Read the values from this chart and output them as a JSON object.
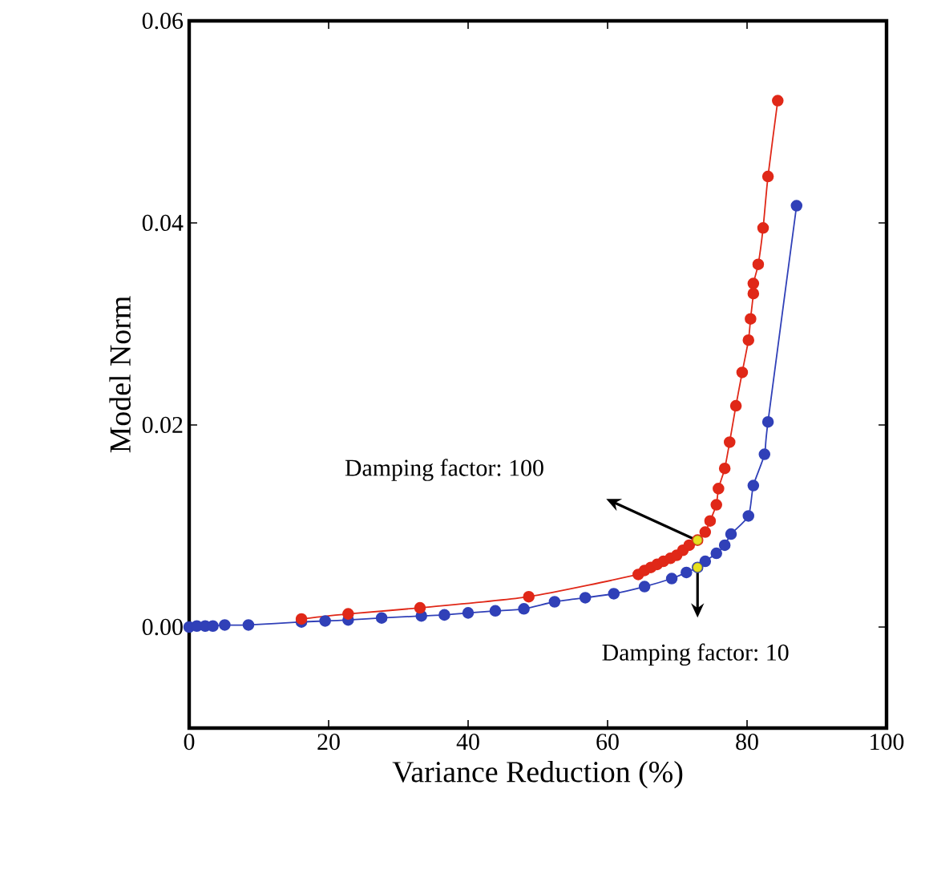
{
  "chart_data": {
    "type": "line",
    "xlabel": "Variance Reduction (%)",
    "ylabel": "Model Norm",
    "xlim": [
      0,
      100
    ],
    "ylim": [
      -0.01,
      0.06
    ],
    "xticks": [
      0,
      20,
      40,
      60,
      80,
      100
    ],
    "yticks": [
      {
        "value": 0,
        "label": "0.00"
      },
      {
        "value": 0.02,
        "label": "0.02"
      },
      {
        "value": 0.04,
        "label": "0.04"
      },
      {
        "value": 0.06,
        "label": "0.06"
      }
    ],
    "grid": false,
    "marker": "circle",
    "line_style": "solid",
    "series": [
      {
        "color": "#3040b8",
        "x": [
          0,
          1.1,
          2.3,
          3.4,
          5.1,
          8.5,
          16.1,
          19.5,
          22.8,
          27.6,
          33.3,
          36.6,
          40.0,
          43.9,
          48.0,
          52.4,
          56.8,
          60.9,
          65.3,
          69.2,
          71.3,
          72.9,
          74.0,
          75.6,
          76.8,
          77.7,
          80.2,
          80.9,
          82.5,
          83.0,
          87.1
        ],
        "values": [
          0,
          0.0001,
          0.0001,
          0.0001,
          0.0002,
          0.0002,
          0.0005,
          0.0006,
          0.0007,
          0.0009,
          0.0011,
          0.0012,
          0.0014,
          0.0016,
          0.0018,
          0.0025,
          0.0029,
          0.0033,
          0.004,
          0.0048,
          0.0054,
          0.0059,
          0.0065,
          0.0073,
          0.0081,
          0.0092,
          0.011,
          0.014,
          0.0171,
          0.0203,
          0.0417
        ]
      },
      {
        "color": "#e02818",
        "x": [
          16.1,
          22.8,
          33.1,
          48.7,
          64.4,
          65.3,
          66.2,
          67.1,
          68.0,
          69.0,
          69.9,
          70.8,
          71.7,
          72.9,
          74.0,
          74.7,
          75.6,
          75.9,
          76.8,
          77.5,
          78.4,
          79.3,
          80.2,
          80.5,
          80.9,
          80.9,
          81.6,
          82.3,
          83.0,
          84.4
        ],
        "values": [
          0.0008,
          0.0013,
          0.0019,
          0.003,
          0.0052,
          0.0056,
          0.0059,
          0.0062,
          0.0065,
          0.0068,
          0.0071,
          0.0076,
          0.0081,
          0.0086,
          0.0094,
          0.0105,
          0.0121,
          0.0137,
          0.0157,
          0.0183,
          0.0219,
          0.0252,
          0.0284,
          0.0305,
          0.033,
          0.034,
          0.0359,
          0.0395,
          0.0446,
          0.0521
        ]
      },
      {
        "type": "scatter",
        "color": "#e8e020",
        "x": [
          72.9,
          72.9
        ],
        "values": [
          0.0086,
          0.0059
        ]
      }
    ],
    "annotations": [
      "Damping factor: 100",
      "Damping factor: 10"
    ]
  }
}
